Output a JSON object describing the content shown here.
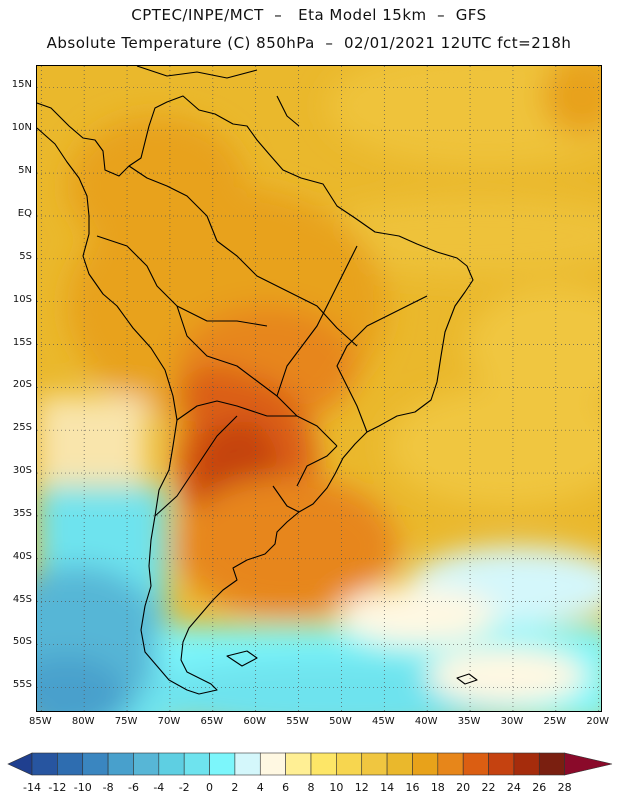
{
  "title_line1": "CPTEC/INPE/MCT  –   Eta Model 15km  –  GFS",
  "title_line2": "Absolute Temperature (C) 850hPa  –  02/01/2021 12UTC fct=218h",
  "map": {
    "lat_labels": [
      "15N",
      "10N",
      "5N",
      "EQ",
      "5S",
      "10S",
      "15S",
      "20S",
      "25S",
      "30S",
      "35S",
      "40S",
      "45S",
      "50S",
      "55S"
    ],
    "lat_values": [
      15,
      10,
      5,
      0,
      -5,
      -10,
      -15,
      -20,
      -25,
      -30,
      -35,
      -40,
      -45,
      -50,
      -55
    ],
    "lon_labels": [
      "85W",
      "80W",
      "75W",
      "70W",
      "65W",
      "60W",
      "55W",
      "50W",
      "45W",
      "40W",
      "35W",
      "30W",
      "25W",
      "20W"
    ],
    "lon_values": [
      -85,
      -80,
      -75,
      -70,
      -65,
      -60,
      -55,
      -50,
      -45,
      -40,
      -35,
      -30,
      -25,
      -20
    ],
    "lon_range": [
      -85.5,
      -19.5
    ],
    "lat_range": [
      -58,
      17.5
    ]
  },
  "colorbar": {
    "labels": [
      "-14",
      "-12",
      "-10",
      "-8",
      "-6",
      "-4",
      "-2",
      "0",
      "2",
      "4",
      "6",
      "8",
      "10",
      "12",
      "14",
      "16",
      "18",
      "20",
      "22",
      "24",
      "26",
      "28"
    ],
    "colors": [
      "#1f3f8f",
      "#2755a0",
      "#2e6db0",
      "#3a86c0",
      "#48a0cc",
      "#57b6d6",
      "#5ecfe2",
      "#6ee3ee",
      "#7cf6fb",
      "#d4f7fb",
      "#fff8e2",
      "#ffef94",
      "#fde667",
      "#f7d64f",
      "#f0c640",
      "#eab82c",
      "#e8a21a",
      "#e7861a",
      "#db5e12",
      "#c54210",
      "#a52c0c",
      "#7a1f10",
      "#8a0a2a"
    ]
  }
}
